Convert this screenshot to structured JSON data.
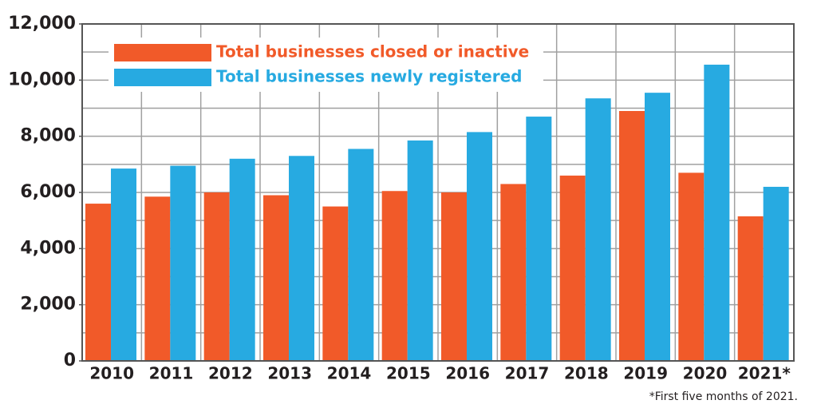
{
  "chart_data": {
    "type": "bar",
    "categories": [
      "2010",
      "2011",
      "2012",
      "2013",
      "2014",
      "2015",
      "2016",
      "2017",
      "2018",
      "2019",
      "2020",
      "2021*"
    ],
    "series": [
      {
        "name": "Total businesses closed or inactive",
        "color": "#f15a29",
        "values": [
          5600,
          5850,
          6000,
          5900,
          5500,
          6050,
          6000,
          6300,
          6600,
          8900,
          6700,
          5150
        ]
      },
      {
        "name": "Total businesses newly registered",
        "color": "#27aae1",
        "values": [
          6850,
          6950,
          7200,
          7300,
          7550,
          7850,
          8150,
          8700,
          9350,
          9550,
          10550,
          6200
        ]
      }
    ],
    "ylim": [
      0,
      12000
    ],
    "yticks": [
      0,
      {
        "value": 2000,
        "label": "2,000"
      },
      {
        "value": 4000,
        "label": "4,000"
      },
      {
        "value": 6000,
        "label": "6,000"
      },
      {
        "value": 8000,
        "label": "8,000"
      },
      {
        "value": 10000,
        "label": "10,000"
      },
      {
        "value": 12000,
        "label": "12,000"
      }
    ],
    "ygrid": [
      0,
      1000,
      2000,
      3000,
      4000,
      5000,
      6000,
      7000,
      8000,
      9000,
      10000,
      11000,
      12000
    ],
    "grid": true,
    "legend": "top-left",
    "footnote": "*First five months of 2021."
  }
}
